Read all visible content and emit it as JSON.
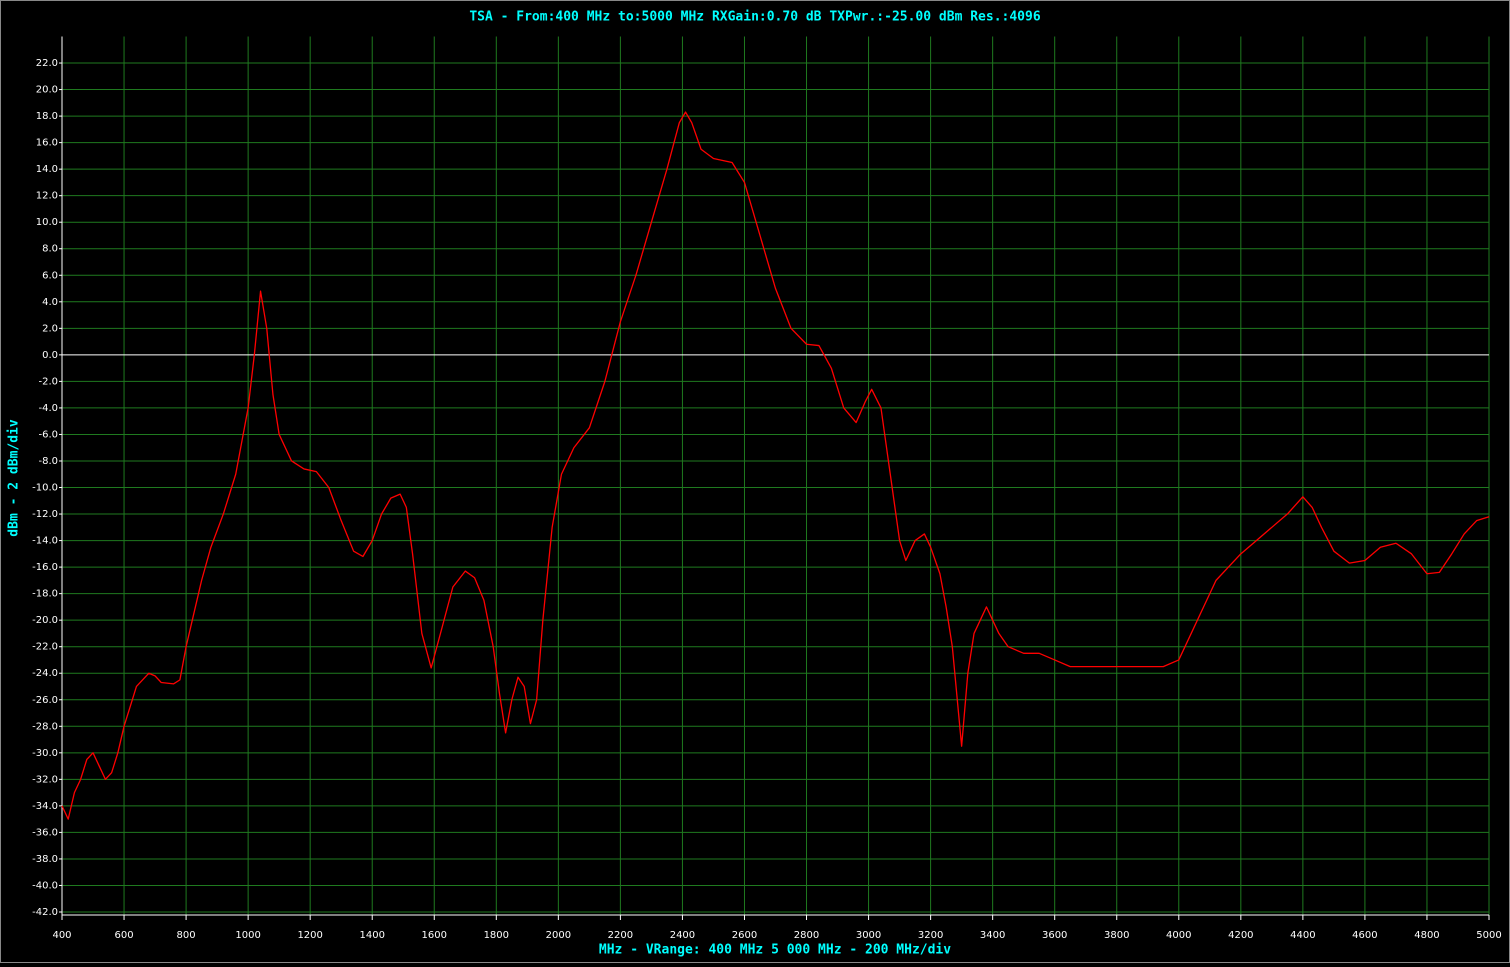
{
  "chart_data": {
    "type": "line",
    "title": "TSA - From:400 MHz to:5000 MHz RXGain:0.70 dB TXPwr.:-25.00 dBm Res.:4096",
    "x_label": "MHz - VRange: 400 MHz 5 000 MHz - 200 MHz/div",
    "y_label": "dBm - 2 dBm/div",
    "color": "#ff0000",
    "grid": true,
    "grid_color": "#1f7a1f",
    "xlim": [
      400,
      5000
    ],
    "ylim": [
      -42,
      24
    ],
    "xticks": [
      400,
      600,
      800,
      1000,
      1200,
      1400,
      1600,
      1800,
      2000,
      2200,
      2400,
      2600,
      2800,
      3000,
      3200,
      3400,
      3600,
      3800,
      4000,
      4200,
      4400,
      4600,
      4800,
      5000
    ],
    "yticks": [
      {
        "value": 22,
        "label": "22.0"
      },
      {
        "value": 20,
        "label": "20.0"
      },
      {
        "value": 18,
        "label": "18.0"
      },
      {
        "value": 16,
        "label": "16.0"
      },
      {
        "value": 14,
        "label": "14.0"
      },
      {
        "value": 12,
        "label": "12.0"
      },
      {
        "value": 10,
        "label": "10.0"
      },
      {
        "value": 8,
        "label": "8.0"
      },
      {
        "value": 6,
        "label": "6.0"
      },
      {
        "value": 4,
        "label": "4.0"
      },
      {
        "value": 2,
        "label": "2.0"
      },
      {
        "value": 0,
        "label": "0.0"
      },
      {
        "value": -2,
        "label": "-2.0"
      },
      {
        "value": -4,
        "label": "-4.0"
      },
      {
        "value": -6,
        "label": "-6.0"
      },
      {
        "value": -8,
        "label": "-8.0"
      },
      {
        "value": -10,
        "label": "-10.0"
      },
      {
        "value": -12,
        "label": "-12.0"
      },
      {
        "value": -14,
        "label": "-14.0"
      },
      {
        "value": -16,
        "label": "-16.0"
      },
      {
        "value": -18,
        "label": "-18.0"
      },
      {
        "value": -20,
        "label": "-20.0"
      },
      {
        "value": -22,
        "label": "-22.0"
      },
      {
        "value": -24,
        "label": "-24.0"
      },
      {
        "value": -26,
        "label": "-26.0"
      },
      {
        "value": -28,
        "label": "-28.0"
      },
      {
        "value": -30,
        "label": "-30.0"
      },
      {
        "value": -32,
        "label": "-32.0"
      },
      {
        "value": -34,
        "label": "-34.0"
      },
      {
        "value": -36,
        "label": "-36.0"
      },
      {
        "value": -38,
        "label": "-38.0"
      },
      {
        "value": -40,
        "label": "-40.0"
      },
      {
        "value": -42,
        "label": "-42.0"
      }
    ],
    "x": [
      400,
      420,
      440,
      460,
      480,
      500,
      520,
      540,
      560,
      580,
      600,
      620,
      640,
      660,
      680,
      700,
      720,
      760,
      780,
      800,
      820,
      850,
      880,
      920,
      960,
      1000,
      1020,
      1040,
      1060,
      1080,
      1100,
      1140,
      1180,
      1220,
      1260,
      1300,
      1340,
      1370,
      1400,
      1430,
      1460,
      1490,
      1510,
      1530,
      1560,
      1590,
      1620,
      1660,
      1700,
      1730,
      1760,
      1790,
      1810,
      1830,
      1850,
      1870,
      1890,
      1910,
      1930,
      1950,
      1980,
      2010,
      2050,
      2100,
      2150,
      2200,
      2250,
      2300,
      2350,
      2390,
      2410,
      2430,
      2460,
      2500,
      2560,
      2600,
      2650,
      2700,
      2750,
      2800,
      2840,
      2880,
      2920,
      2960,
      2990,
      3010,
      3040,
      3070,
      3100,
      3120,
      3150,
      3180,
      3200,
      3230,
      3250,
      3270,
      3290,
      3300,
      3320,
      3340,
      3360,
      3380,
      3420,
      3450,
      3500,
      3550,
      3600,
      3650,
      3700,
      3750,
      3800,
      3850,
      3900,
      3950,
      4000,
      4040,
      4080,
      4120,
      4160,
      4200,
      4250,
      4300,
      4350,
      4400,
      4430,
      4460,
      4500,
      4550,
      4600,
      4650,
      4700,
      4750,
      4800,
      4840,
      4880,
      4920,
      4960,
      5000
    ],
    "values": [
      -34,
      -35,
      -33,
      -32,
      -30.5,
      -30,
      -31,
      -32,
      -31.5,
      -30,
      -28,
      -26.5,
      -25,
      -24.5,
      -24,
      -24.2,
      -24.7,
      -24.8,
      -24.5,
      -22,
      -20,
      -17,
      -14.5,
      -12,
      -9,
      -4,
      0,
      4.8,
      2,
      -3,
      -6,
      -8,
      -8.6,
      -8.8,
      -10,
      -12.5,
      -14.8,
      -15.2,
      -14,
      -12,
      -10.8,
      -10.5,
      -11.5,
      -15,
      -21,
      -23.6,
      -21,
      -17.5,
      -16.3,
      -16.8,
      -18.5,
      -22,
      -25.5,
      -28.5,
      -26,
      -24.3,
      -25,
      -27.8,
      -26,
      -20,
      -13,
      -9,
      -7,
      -5.5,
      -2,
      2.5,
      6,
      10,
      14,
      17.5,
      18.3,
      17.5,
      15.5,
      14.8,
      14.5,
      13,
      9,
      5,
      2,
      0.8,
      0.7,
      -1,
      -4,
      -5.1,
      -3.5,
      -2.6,
      -4,
      -9,
      -14,
      -15.5,
      -14,
      -13.5,
      -14.5,
      -16.5,
      -19,
      -22,
      -27,
      -29.5,
      -24,
      -21,
      -20,
      -19,
      -21,
      -22,
      -22.5,
      -22.5,
      -23,
      -23.5,
      -23.5,
      -23.5,
      -23.5,
      -23.5,
      -23.5,
      -23.5,
      -23,
      -21,
      -19,
      -17,
      -16,
      -15,
      -14,
      -13,
      -12,
      -10.7,
      -11.5,
      -13,
      -14.8,
      -15.7,
      -15.5,
      -14.5,
      -14.2,
      -15,
      -16.5,
      -16.4,
      -15,
      -13.5,
      -12.5,
      -12.2
    ]
  }
}
